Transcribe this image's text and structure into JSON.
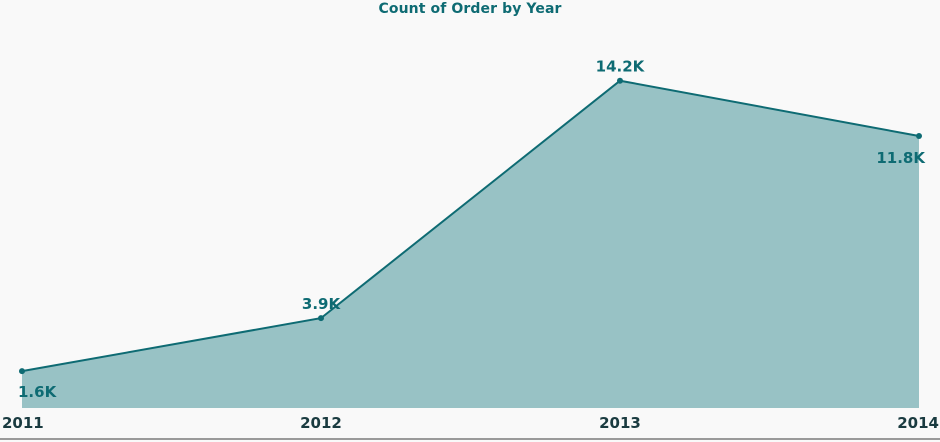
{
  "chart_data": {
    "type": "area",
    "title": "Count of Order by Year",
    "categories": [
      "2011",
      "2012",
      "2013",
      "2014"
    ],
    "series": [
      {
        "values": [
          1600,
          3900,
          14200,
          11800
        ]
      }
    ],
    "data_labels": [
      "1.6K",
      "3.9K",
      "14.2K",
      "11.8K"
    ],
    "ylim": [
      0,
      16400
    ],
    "grid": false,
    "legend": "none",
    "colors": {
      "line": "#0e6b73",
      "fill": "#98c2c5",
      "title": "#0e6b73",
      "ticks": "#1a3b40"
    }
  }
}
